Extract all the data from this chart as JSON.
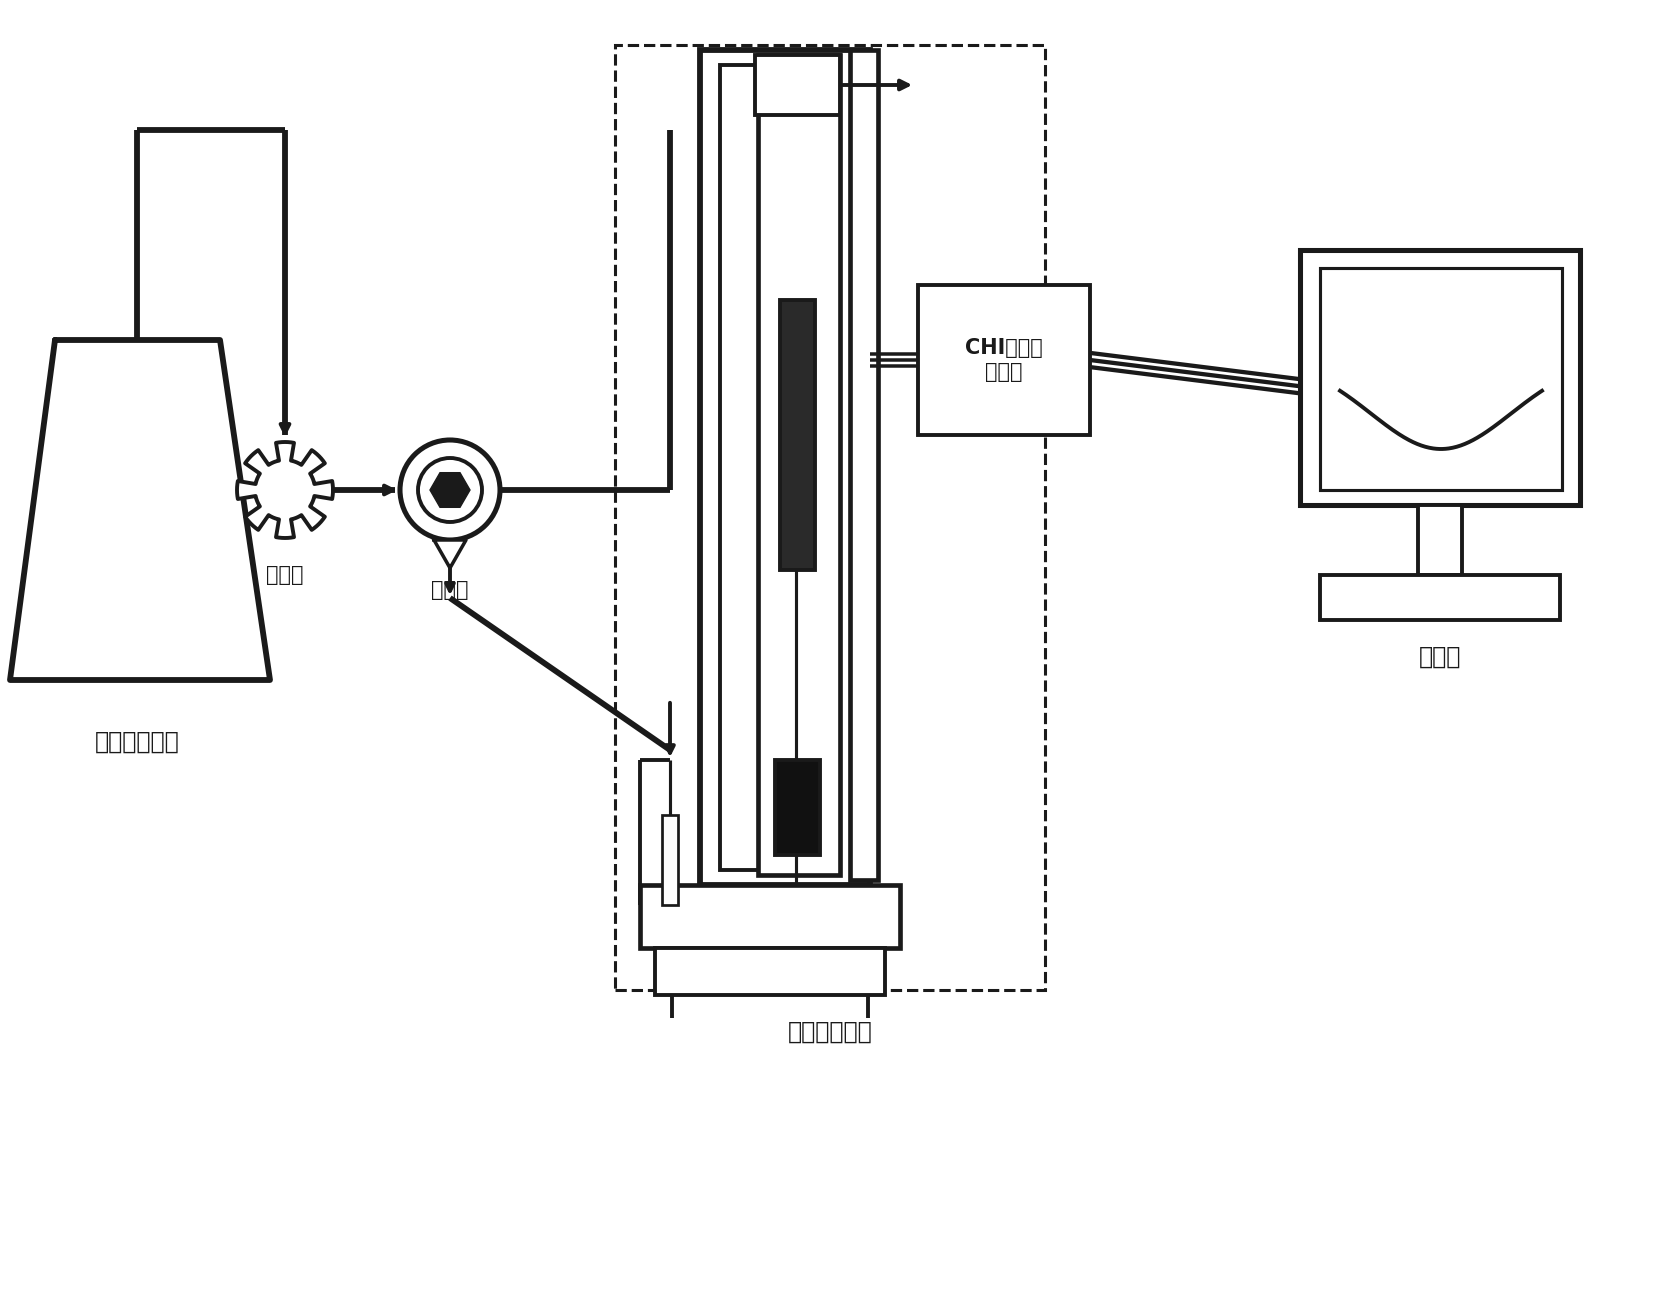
{
  "bg_color": "#ffffff",
  "lc": "#1a1a1a",
  "label_reservoir": "流动相贮存池",
  "label_pump": "蠕动泵",
  "label_injector": "进样器",
  "label_analysis": "分析检测系统",
  "label_chi": "CHI电化学\n工作站",
  "label_computer": "计算机",
  "fig_width": 16.75,
  "fig_height": 13.09
}
